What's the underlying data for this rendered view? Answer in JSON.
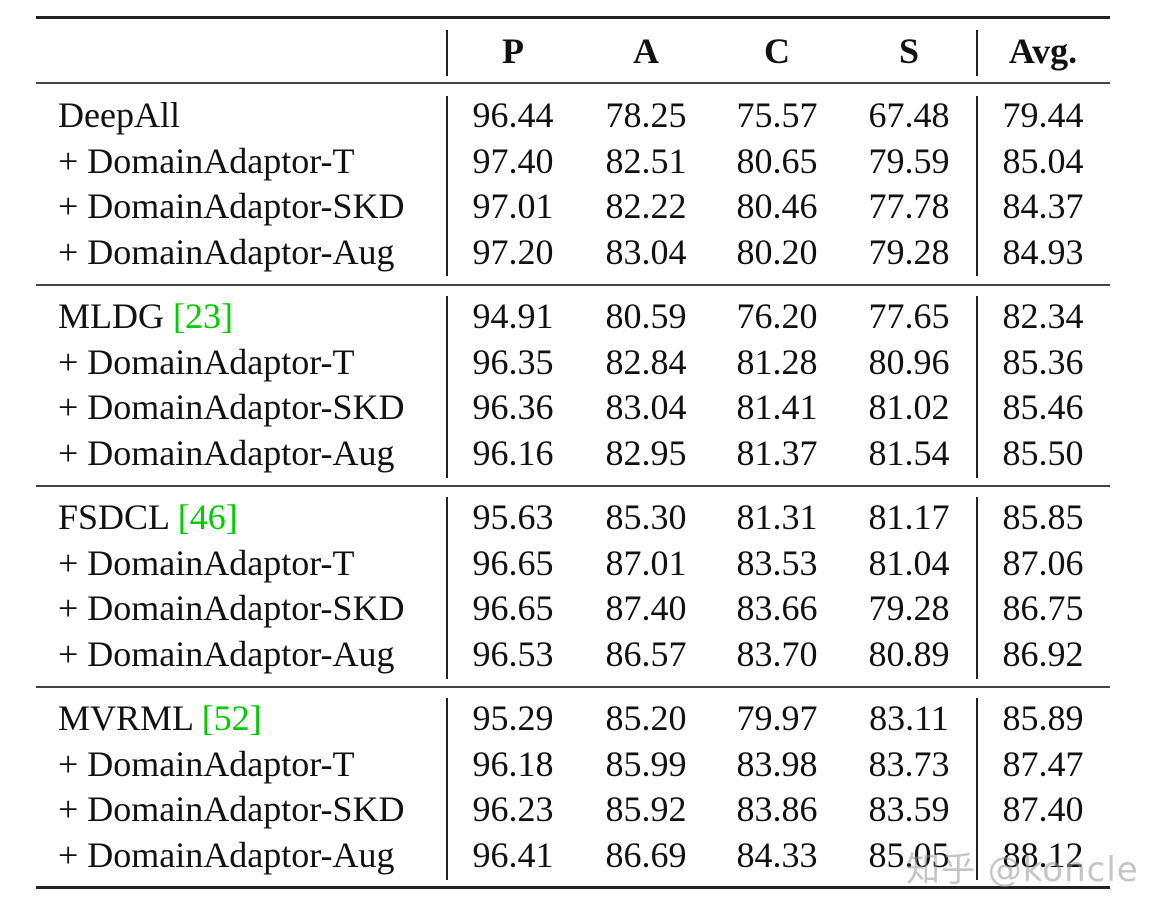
{
  "table": {
    "headers": [
      "P",
      "A",
      "C",
      "S",
      "Avg."
    ],
    "groups": [
      {
        "rows": [
          {
            "method": "DeepAll",
            "cite": "",
            "values": [
              "96.44",
              "78.25",
              "75.57",
              "67.48",
              "79.44"
            ]
          },
          {
            "method": "+ DomainAdaptor-T",
            "cite": "",
            "values": [
              "97.40",
              "82.51",
              "80.65",
              "79.59",
              "85.04"
            ]
          },
          {
            "method": "+ DomainAdaptor-SKD",
            "cite": "",
            "values": [
              "97.01",
              "82.22",
              "80.46",
              "77.78",
              "84.37"
            ]
          },
          {
            "method": "+ DomainAdaptor-Aug",
            "cite": "",
            "values": [
              "97.20",
              "83.04",
              "80.20",
              "79.28",
              "84.93"
            ]
          }
        ]
      },
      {
        "rows": [
          {
            "method": "MLDG ",
            "cite": "[23]",
            "values": [
              "94.91",
              "80.59",
              "76.20",
              "77.65",
              "82.34"
            ]
          },
          {
            "method": "+ DomainAdaptor-T",
            "cite": "",
            "values": [
              "96.35",
              "82.84",
              "81.28",
              "80.96",
              "85.36"
            ]
          },
          {
            "method": "+ DomainAdaptor-SKD",
            "cite": "",
            "values": [
              "96.36",
              "83.04",
              "81.41",
              "81.02",
              "85.46"
            ]
          },
          {
            "method": "+ DomainAdaptor-Aug",
            "cite": "",
            "values": [
              "96.16",
              "82.95",
              "81.37",
              "81.54",
              "85.50"
            ]
          }
        ]
      },
      {
        "rows": [
          {
            "method": "FSDCL ",
            "cite": "[46]",
            "values": [
              "95.63",
              "85.30",
              "81.31",
              "81.17",
              "85.85"
            ]
          },
          {
            "method": "+ DomainAdaptor-T",
            "cite": "",
            "values": [
              "96.65",
              "87.01",
              "83.53",
              "81.04",
              "87.06"
            ]
          },
          {
            "method": "+ DomainAdaptor-SKD",
            "cite": "",
            "values": [
              "96.65",
              "87.40",
              "83.66",
              "79.28",
              "86.75"
            ]
          },
          {
            "method": "+ DomainAdaptor-Aug",
            "cite": "",
            "values": [
              "96.53",
              "86.57",
              "83.70",
              "80.89",
              "86.92"
            ]
          }
        ]
      },
      {
        "rows": [
          {
            "method": "MVRML ",
            "cite": "[52]",
            "values": [
              "95.29",
              "85.20",
              "79.97",
              "83.11",
              "85.89"
            ]
          },
          {
            "method": "+ DomainAdaptor-T",
            "cite": "",
            "values": [
              "96.18",
              "85.99",
              "83.98",
              "83.73",
              "87.47"
            ]
          },
          {
            "method": "+ DomainAdaptor-SKD",
            "cite": "",
            "values": [
              "96.23",
              "85.92",
              "83.86",
              "83.59",
              "87.40"
            ]
          },
          {
            "method": "+ DomainAdaptor-Aug",
            "cite": "",
            "values": [
              "96.41",
              "86.69",
              "84.33",
              "85.05",
              "88.12"
            ]
          }
        ]
      }
    ]
  },
  "watermark": "知乎 @koncle"
}
